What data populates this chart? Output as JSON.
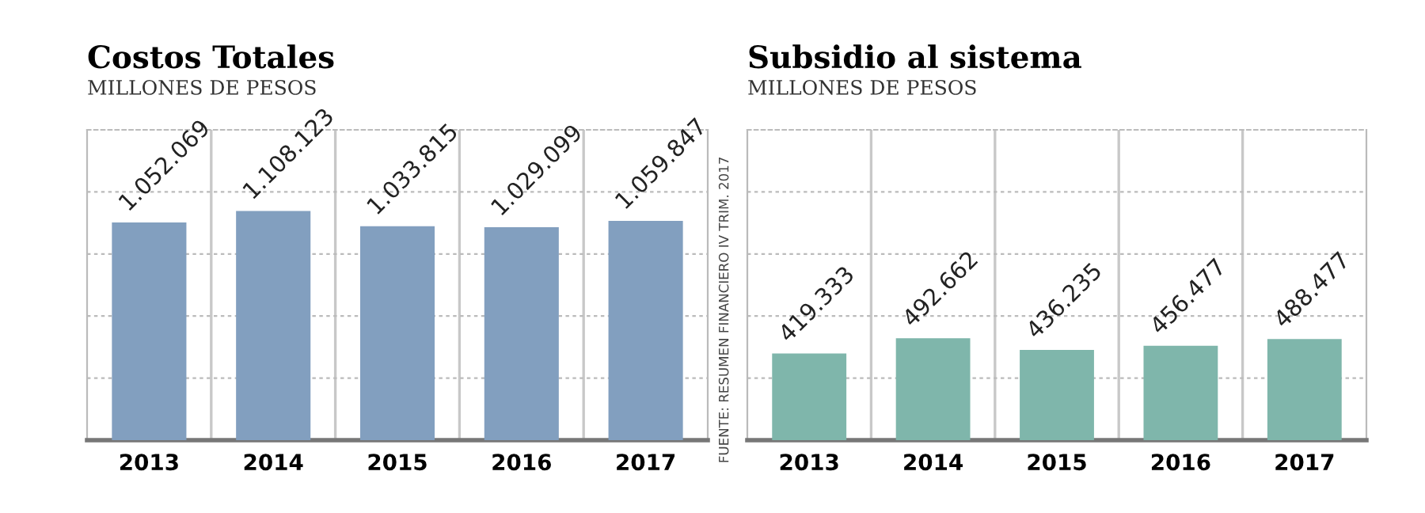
{
  "chart_data": [
    {
      "type": "bar",
      "title": "Costos Totales",
      "subtitle": "MILLONES DE PESOS",
      "categories": [
        "2013",
        "2014",
        "2015",
        "2016",
        "2017"
      ],
      "values": [
        1052069,
        1108123,
        1033815,
        1029099,
        1059847
      ],
      "value_labels": [
        "1.052.069",
        "1.108.123",
        "1.033.815",
        "1.029.099",
        "1.059.847"
      ],
      "color": "#829fbf",
      "ylim": [
        0,
        1500000
      ],
      "yticks": [
        {
          "value": 0,
          "label": null
        },
        {
          "value": 300000,
          "label": null
        },
        {
          "value": 600000,
          "label": null
        },
        {
          "value": 900000,
          "label": null
        },
        {
          "value": 1200000,
          "label": null
        },
        {
          "value": 1500000,
          "label": null
        }
      ],
      "tick_labels": "x",
      "grid": true,
      "annotations": [
        "FUENTE: RESUMEN FINANCIERO IV TRIM. 2017"
      ]
    },
    {
      "type": "bar",
      "title": "Subsidio al sistema",
      "subtitle": "MILLONES DE PESOS",
      "categories": [
        "2013",
        "2014",
        "2015",
        "2016",
        "2017"
      ],
      "values": [
        419333,
        492662,
        436235,
        456477,
        488477
      ],
      "value_labels": [
        "419.333",
        "492.662",
        "436.235",
        "456.477",
        "488.477"
      ],
      "color": "#7fb6ab",
      "ylim": [
        0,
        1500000
      ],
      "yticks": [
        {
          "value": 0,
          "label": null
        },
        {
          "value": 300000,
          "label": null
        },
        {
          "value": 600000,
          "label": null
        },
        {
          "value": 900000,
          "label": null
        },
        {
          "value": 1200000,
          "label": null
        },
        {
          "value": 1500000,
          "label": null
        }
      ],
      "tick_labels": "x",
      "grid": true
    }
  ]
}
